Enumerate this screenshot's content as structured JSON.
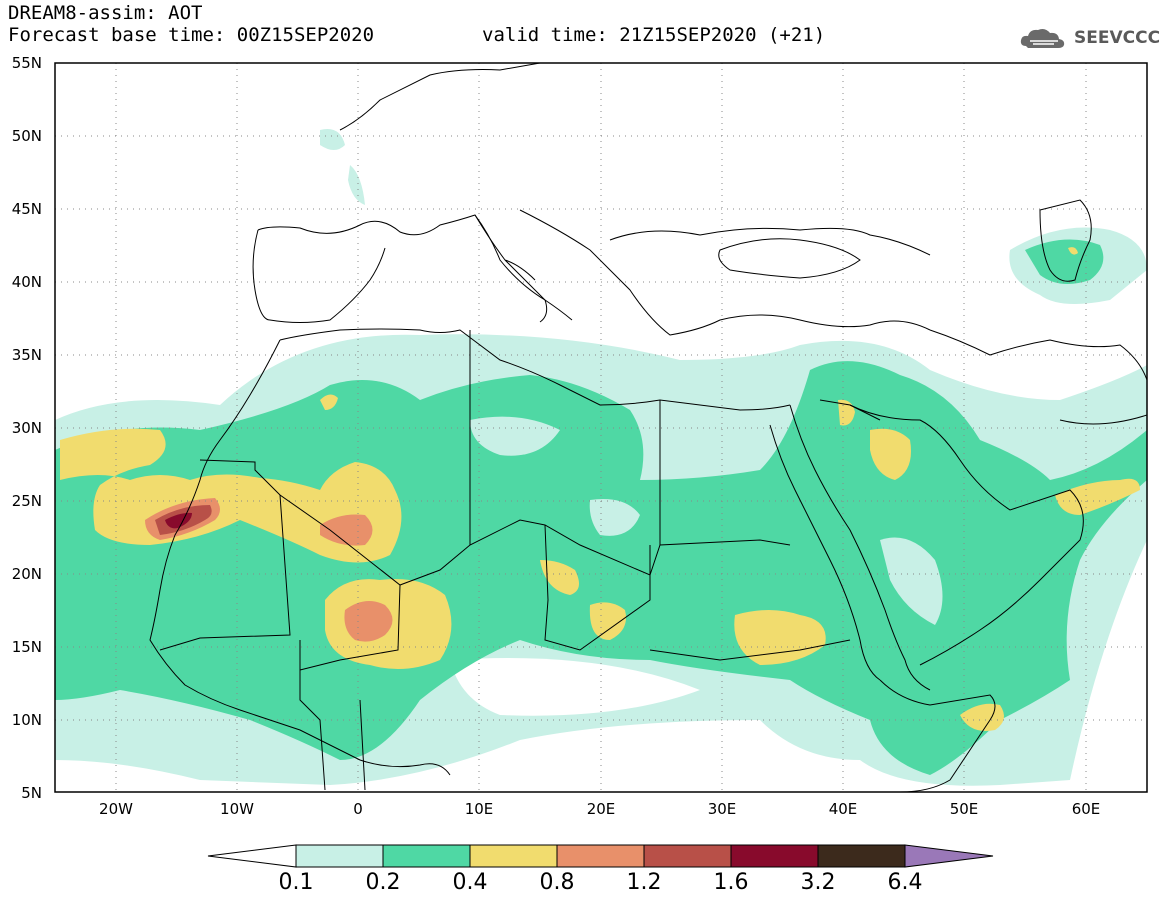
{
  "header": {
    "title": "DREAM8-assim: AOT",
    "base_time": "Forecast base time: 00Z15SEP2020",
    "valid_time": "valid time: 21Z15SEP2020 (+21)",
    "logo_text": "SEEVCCC"
  },
  "axes": {
    "lat_labels": [
      "55N",
      "50N",
      "45N",
      "40N",
      "35N",
      "30N",
      "25N",
      "20N",
      "15N",
      "10N",
      "5N"
    ],
    "lon_labels": [
      "20W",
      "10W",
      "0",
      "10E",
      "20E",
      "30E",
      "40E",
      "50E",
      "60E"
    ],
    "lat_range": [
      5,
      55
    ],
    "lon_range": [
      -25,
      65
    ],
    "grid": "dotted"
  },
  "legend": {
    "levels": [
      "0.1",
      "0.2",
      "0.4",
      "0.8",
      "1.2",
      "1.6",
      "3.2",
      "6.4"
    ],
    "colors": [
      "#c8f0e6",
      "#4fd8a4",
      "#f1dc6e",
      "#e8906a",
      "#b85048",
      "#880a2c",
      "#3c2a1c",
      "#9a78b8"
    ]
  },
  "colors": {
    "c1": "#c8f0e6",
    "c2": "#4fd8a4",
    "c3": "#f1dc6e",
    "c4": "#e8906a",
    "c5": "#b85048",
    "c6": "#880a2c"
  }
}
